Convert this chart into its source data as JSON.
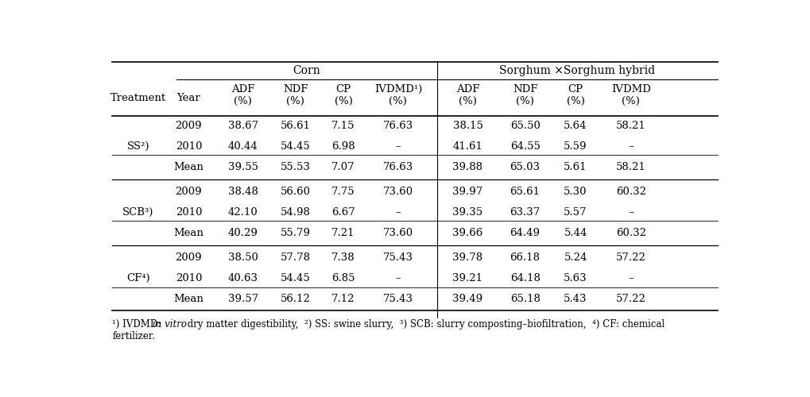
{
  "corn_header": "Corn",
  "sorghum_header": "Sorghum ×Sorghum hybrid",
  "sub_headers": [
    "Treatment",
    "Year",
    "ADF\n(%)",
    "NDF\n(%)",
    "CP\n(%)",
    "IVDMD¹)\n(%)",
    "ADF\n(%)",
    "NDF\n(%)",
    "CP\n(%)",
    "IVDMD\n(%)"
  ],
  "ivdmd_corn_label": "IVDMD¹)",
  "rows": [
    [
      "",
      "2009",
      "38.67",
      "56.61",
      "7.15",
      "76.63",
      "38.15",
      "65.50",
      "5.64",
      "58.21"
    ],
    [
      "SS²)",
      "2010",
      "40.44",
      "54.45",
      "6.98",
      "–",
      "41.61",
      "64.55",
      "5.59",
      "–"
    ],
    [
      "",
      "Mean",
      "39.55",
      "55.53",
      "7.07",
      "76.63",
      "39.88",
      "65.03",
      "5.61",
      "58.21"
    ],
    [
      "",
      "2009",
      "38.48",
      "56.60",
      "7.75",
      "73.60",
      "39.97",
      "65.61",
      "5.30",
      "60.32"
    ],
    [
      "SCB³)",
      "2010",
      "42.10",
      "54.98",
      "6.67",
      "–",
      "39.35",
      "63.37",
      "5.57",
      "–"
    ],
    [
      "",
      "Mean",
      "40.29",
      "55.79",
      "7.21",
      "73.60",
      "39.66",
      "64.49",
      "5.44",
      "60.32"
    ],
    [
      "",
      "2009",
      "38.50",
      "57.78",
      "7.38",
      "75.43",
      "39.78",
      "66.18",
      "5.24",
      "57.22"
    ],
    [
      "CF⁴)",
      "2010",
      "40.63",
      "54.45",
      "6.85",
      "–",
      "39.21",
      "64.18",
      "5.63",
      "–"
    ],
    [
      "",
      "Mean",
      "39.57",
      "56.12",
      "7.12",
      "75.43",
      "39.49",
      "65.18",
      "5.43",
      "57.22"
    ]
  ],
  "bg_color": "#ffffff",
  "line_color": "#000000",
  "font_size": 9.5,
  "header_font_size": 10,
  "fn_font_size": 8.5
}
